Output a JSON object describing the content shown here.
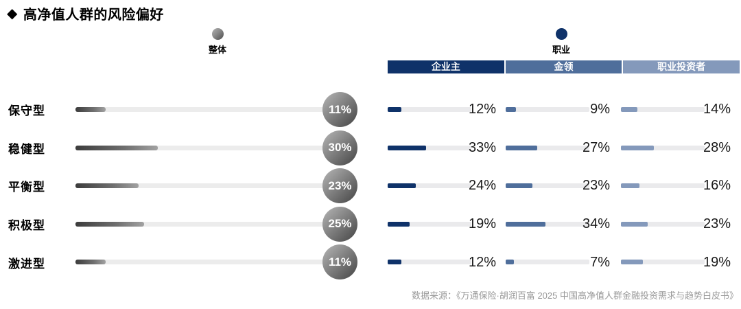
{
  "header": {
    "diamond": "◆",
    "title": "高净值人群的风险偏好"
  },
  "legend": {
    "overall_label": "整体",
    "occupation_label": "职业"
  },
  "columns": [
    {
      "label": "企业主",
      "color": "#0f3269"
    },
    {
      "label": "金领",
      "color": "#4f6e9b"
    },
    {
      "label": "职业投资者",
      "color": "#8499bb"
    }
  ],
  "rows": [
    {
      "label": "保守型",
      "overall": "11%",
      "values": [
        "12%",
        "9%",
        "14%"
      ]
    },
    {
      "label": "稳健型",
      "overall": "30%",
      "values": [
        "33%",
        "27%",
        "28%"
      ]
    },
    {
      "label": "平衡型",
      "overall": "23%",
      "values": [
        "24%",
        "23%",
        "16%"
      ]
    },
    {
      "label": "积极型",
      "overall": "25%",
      "values": [
        "19%",
        "34%",
        "23%"
      ]
    },
    {
      "label": "激进型",
      "overall": "11%",
      "values": [
        "12%",
        "7%",
        "19%"
      ]
    }
  ],
  "source": "数据来源：《万通保险·胡润百富 2025 中国高净值人群金融投资需求与趋势白皮书》",
  "chart_data": {
    "type": "bar",
    "orientation": "horizontal",
    "title": "高净值人群的风险偏好",
    "categories": [
      "保守型",
      "稳健型",
      "平衡型",
      "积极型",
      "激进型"
    ],
    "unit": "%",
    "xlim": [
      0,
      100
    ],
    "legend_position": "top",
    "grid": false,
    "series": [
      {
        "name": "整体",
        "values": [
          11,
          30,
          23,
          25,
          11
        ],
        "color": "#808080"
      },
      {
        "name": "企业主",
        "values": [
          12,
          33,
          24,
          19,
          12
        ],
        "color": "#0f3269"
      },
      {
        "name": "金领",
        "values": [
          9,
          27,
          23,
          34,
          7
        ],
        "color": "#4f6e9b"
      },
      {
        "name": "职业投资者",
        "values": [
          14,
          28,
          16,
          23,
          19
        ],
        "color": "#8499bb"
      }
    ]
  }
}
